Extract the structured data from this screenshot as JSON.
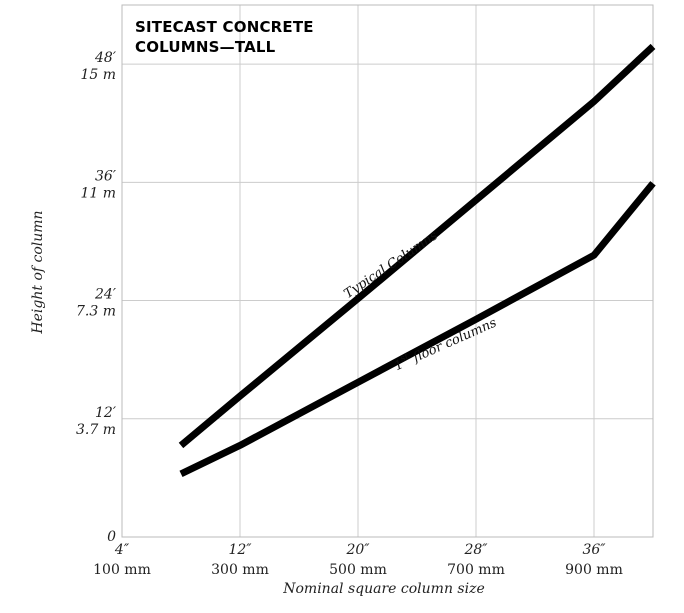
{
  "chart_data": {
    "type": "line",
    "title_lines": [
      "SITECAST CONCRETE",
      "COLUMNS—TALL"
    ],
    "xlabel": "Nominal square column size",
    "ylabel": "Height of column",
    "xlim": [
      4,
      40
    ],
    "ylim": [
      0,
      54
    ],
    "grid": true,
    "x_ticks": [
      {
        "value": 4,
        "label1": "4″",
        "label2": "100 mm"
      },
      {
        "value": 12,
        "label1": "12″",
        "label2": "300 mm"
      },
      {
        "value": 20,
        "label1": "20″",
        "label2": "500 mm"
      },
      {
        "value": 28,
        "label1": "28″",
        "label2": "700 mm"
      },
      {
        "value": 36,
        "label1": "36″",
        "label2": "900 mm"
      }
    ],
    "y_ticks": [
      {
        "value": 0,
        "label1": "0",
        "label2": ""
      },
      {
        "value": 12,
        "label1": "12′",
        "label2": "3.7 m"
      },
      {
        "value": 24,
        "label1": "24′",
        "label2": "7.3 m"
      },
      {
        "value": 36,
        "label1": "36′",
        "label2": "11 m"
      },
      {
        "value": 48,
        "label1": "48′",
        "label2": "15 m"
      }
    ],
    "series": [
      {
        "name": "Typical Columns",
        "x": [
          8,
          12,
          20,
          28,
          36,
          40
        ],
        "y": [
          9.3,
          14.3,
          24.2,
          34.2,
          44.2,
          49.8
        ]
      },
      {
        "name_main": "1",
        "name_sup": "st",
        "name_rest": " floor columns",
        "x": [
          8,
          12,
          20,
          28,
          36,
          40
        ],
        "y": [
          6.4,
          9.3,
          15.7,
          22.1,
          28.6,
          35.9
        ]
      }
    ],
    "line_color": "#000000",
    "grid_color": "#cccccc"
  }
}
